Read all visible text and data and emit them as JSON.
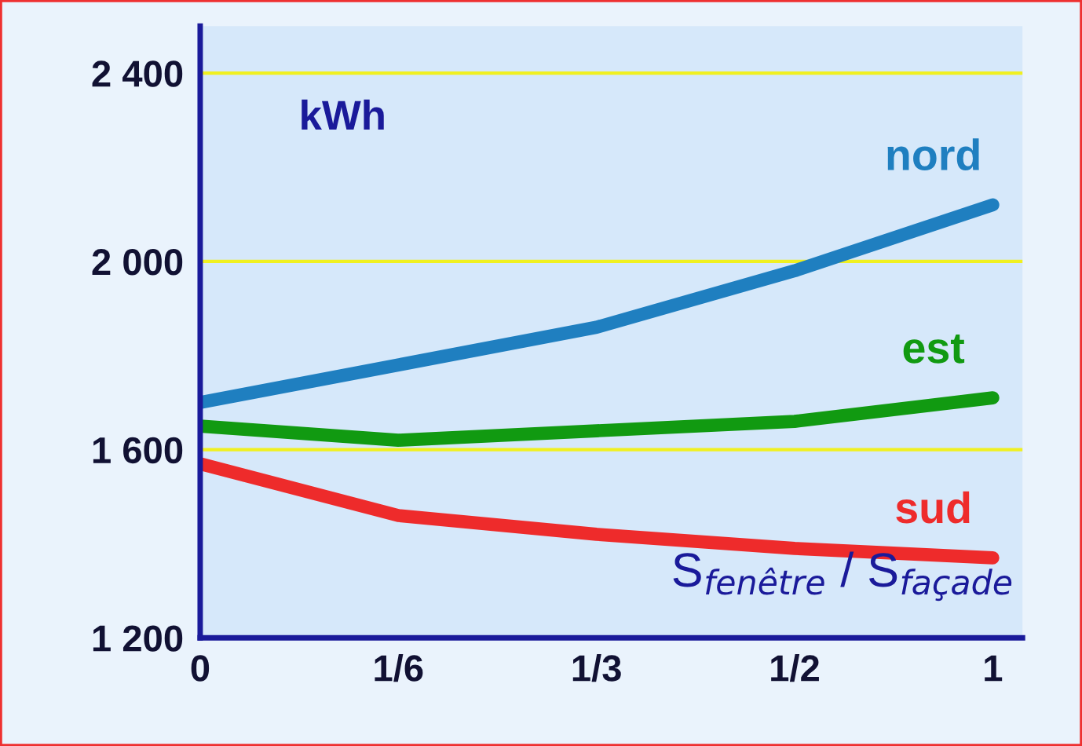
{
  "chart_data": {
    "type": "line",
    "ylabel": "kWh",
    "xlabel": "S$_{fenêtre}$ / S$_{façade}$",
    "categories": [
      "0",
      "1/6",
      "1/3",
      "1/2",
      "1"
    ],
    "series": [
      {
        "name": "nord",
        "color": "#1f7fc0",
        "values": [
          1700,
          1780,
          1860,
          1980,
          2120
        ]
      },
      {
        "name": "est",
        "color": "#119a11",
        "values": [
          1650,
          1620,
          1640,
          1660,
          1710
        ]
      },
      {
        "name": "sud",
        "color": "#ee2b2b",
        "values": [
          1570,
          1460,
          1420,
          1390,
          1370
        ]
      }
    ],
    "ylim": [
      1200,
      2500
    ],
    "yticks": [
      {
        "value": 1200,
        "label": "1 200"
      },
      {
        "value": 1600,
        "label": "1 600"
      },
      {
        "value": 2000,
        "label": "2 000"
      },
      {
        "value": 2400,
        "label": "2 400"
      }
    ],
    "grid": "y",
    "legend": false,
    "marker": "none",
    "line_style": "solid"
  }
}
